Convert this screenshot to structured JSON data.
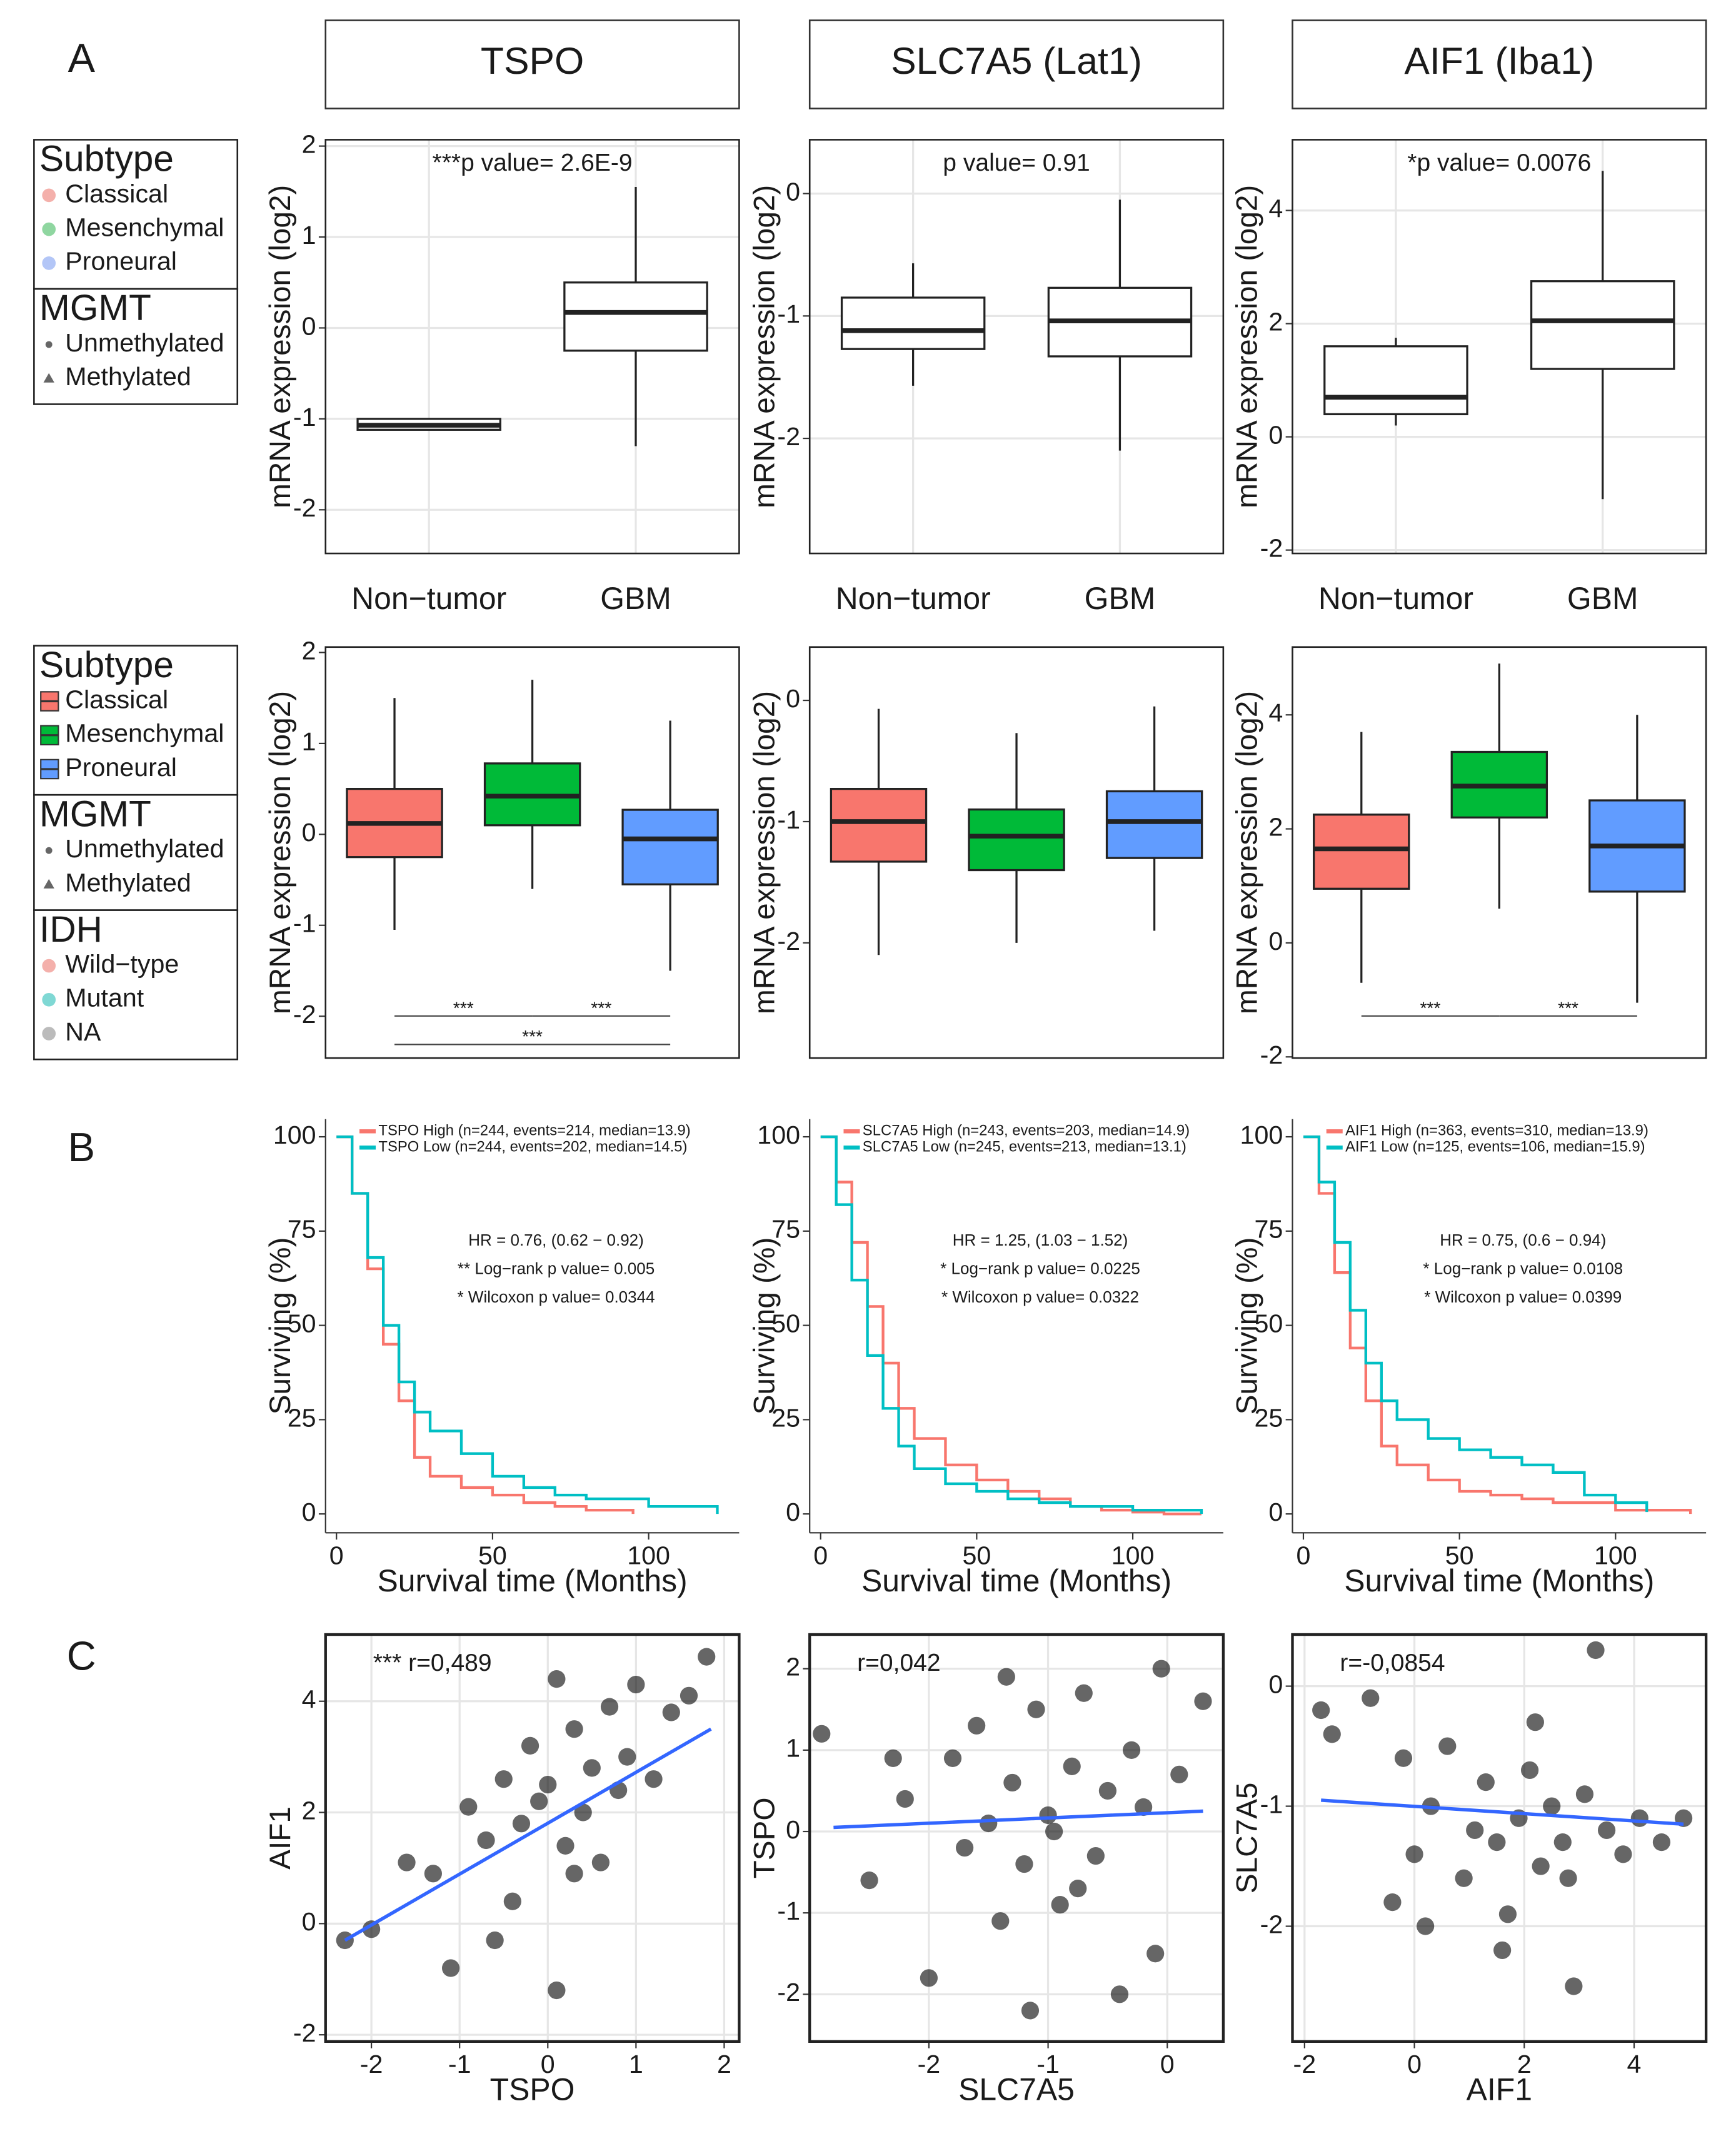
{
  "panels": [
    "A",
    "B",
    "C"
  ],
  "headers": [
    "TSPO",
    "SLC7A5 (Lat1)",
    "AIF1 (Iba1)"
  ],
  "legends": [
    {
      "groups": [
        {
          "title": "Subtype",
          "marker": "circle",
          "items": [
            {
              "label": "Classical",
              "color": "#f4b0ab"
            },
            {
              "label": "Mesenchymal",
              "color": "#8fd6a0"
            },
            {
              "label": "Proneural",
              "color": "#b3c6f7"
            }
          ]
        },
        {
          "title": "MGMT",
          "items": [
            {
              "label": "Unmethylated",
              "color": "#666666",
              "marker": "circle"
            },
            {
              "label": "Methylated",
              "color": "#666666",
              "marker": "triangle"
            }
          ]
        }
      ]
    },
    {
      "groups": [
        {
          "title": "Subtype",
          "marker": "box",
          "items": [
            {
              "label": "Classical",
              "color": "#f8766d"
            },
            {
              "label": "Mesenchymal",
              "color": "#00ba38"
            },
            {
              "label": "Proneural",
              "color": "#619cff"
            }
          ]
        },
        {
          "title": "MGMT",
          "items": [
            {
              "label": "Unmethylated",
              "color": "#666666",
              "marker": "circle"
            },
            {
              "label": "Methylated",
              "color": "#666666",
              "marker": "triangle"
            }
          ]
        },
        {
          "title": "IDH",
          "marker": "circle",
          "items": [
            {
              "label": "Wild−type",
              "color": "#f4b0ab"
            },
            {
              "label": "Mutant",
              "color": "#7fd8d4"
            },
            {
              "label": "NA",
              "color": "#bbbbbb"
            }
          ]
        }
      ]
    }
  ],
  "chart_data": [
    {
      "type": "box",
      "grid": true,
      "ylabel": "mRNA expression (log2)",
      "annotation": "***p value= 2.6E-9",
      "categories": [
        "Non−tumor",
        "GBM"
      ],
      "ylim": [
        -2.48,
        2.07
      ],
      "yticks": [
        -2,
        -1,
        0,
        1,
        2
      ],
      "boxes": [
        {
          "color": "#ffffff",
          "whislo": -1.12,
          "q1": -1.12,
          "median": -1.07,
          "q3": -1.0,
          "whishi": -1.0
        },
        {
          "color": "#ffffff",
          "whislo": -1.3,
          "q1": -0.25,
          "median": 0.17,
          "q3": 0.5,
          "whishi": 1.55
        }
      ]
    },
    {
      "type": "box",
      "grid": true,
      "ylabel": "mRNA expression (log2)",
      "annotation": "p value= 0.91",
      "categories": [
        "Non−tumor",
        "GBM"
      ],
      "ylim": [
        -2.94,
        0.44
      ],
      "yticks": [
        -2,
        -1,
        0
      ],
      "boxes": [
        {
          "color": "#ffffff",
          "whislo": -1.57,
          "q1": -1.27,
          "median": -1.12,
          "q3": -0.85,
          "whishi": -0.57
        },
        {
          "color": "#ffffff",
          "whislo": -2.1,
          "q1": -1.33,
          "median": -1.04,
          "q3": -0.77,
          "whishi": -0.05
        }
      ]
    },
    {
      "type": "box",
      "grid": true,
      "ylabel": "mRNA expression (log2)",
      "annotation": "*p value= 0.0076",
      "categories": [
        "Non−tumor",
        "GBM"
      ],
      "ylim": [
        -2.06,
        5.25
      ],
      "yticks": [
        -2,
        0,
        2,
        4
      ],
      "boxes": [
        {
          "color": "#ffffff",
          "whislo": 0.2,
          "q1": 0.4,
          "median": 0.7,
          "q3": 1.6,
          "whishi": 1.75
        },
        {
          "color": "#ffffff",
          "whislo": -1.1,
          "q1": 1.2,
          "median": 2.05,
          "q3": 2.75,
          "whishi": 4.7
        }
      ]
    },
    {
      "type": "box",
      "grid": false,
      "ylabel": "mRNA expression (log2)",
      "brackets": [
        "***",
        "***",
        "***"
      ],
      "ylim": [
        -2.46,
        2.06
      ],
      "yticks": [
        -2,
        -1,
        0,
        1,
        2
      ],
      "boxes": [
        {
          "color": "#f8766d",
          "whislo": -1.05,
          "q1": -0.25,
          "median": 0.12,
          "q3": 0.5,
          "whishi": 1.5
        },
        {
          "color": "#00ba38",
          "whislo": -0.6,
          "q1": 0.1,
          "median": 0.42,
          "q3": 0.78,
          "whishi": 1.7
        },
        {
          "color": "#619cff",
          "whislo": -1.5,
          "q1": -0.55,
          "median": -0.05,
          "q3": 0.27,
          "whishi": 1.25
        }
      ]
    },
    {
      "type": "box",
      "grid": false,
      "ylabel": "mRNA expression (log2)",
      "ylim": [
        -2.95,
        0.44
      ],
      "yticks": [
        -2,
        -1,
        0
      ],
      "boxes": [
        {
          "color": "#f8766d",
          "whislo": -2.1,
          "q1": -1.33,
          "median": -1.0,
          "q3": -0.73,
          "whishi": -0.07
        },
        {
          "color": "#00ba38",
          "whislo": -2.0,
          "q1": -1.4,
          "median": -1.12,
          "q3": -0.9,
          "whishi": -0.27
        },
        {
          "color": "#619cff",
          "whislo": -1.9,
          "q1": -1.3,
          "median": -1.0,
          "q3": -0.75,
          "whishi": -0.05
        }
      ]
    },
    {
      "type": "box",
      "grid": false,
      "ylabel": "mRNA expression (log2)",
      "brackets": [
        "***",
        "***"
      ],
      "ylim": [
        -2.02,
        5.19
      ],
      "yticks": [
        -2,
        0,
        2,
        4
      ],
      "boxes": [
        {
          "color": "#f8766d",
          "whislo": -0.7,
          "q1": 0.95,
          "median": 1.65,
          "q3": 2.25,
          "whishi": 3.7
        },
        {
          "color": "#00ba38",
          "whislo": 0.6,
          "q1": 2.2,
          "median": 2.75,
          "q3": 3.35,
          "whishi": 4.9
        },
        {
          "color": "#619cff",
          "whislo": -1.05,
          "q1": 0.9,
          "median": 1.7,
          "q3": 2.5,
          "whishi": 4.0
        }
      ]
    },
    {
      "type": "km",
      "ylabel": "Surviving (%)",
      "xlabel": "Survival time (Months)",
      "xlim": [
        -3.5,
        129
      ],
      "xticks": [
        0,
        50,
        100
      ],
      "ylim": [
        -5,
        104.7
      ],
      "yticks": [
        0,
        25,
        50,
        75,
        100
      ],
      "stats": [
        "HR = 0.76, (0.62 − 0.92)",
        "** Log−rank p value= 0.005",
        "* Wilcoxon p value= 0.0344"
      ],
      "series": [
        {
          "name": "TSPO High (n=244, events=214, median=13.9)",
          "color": "#f8766d",
          "x": [
            0,
            5,
            10,
            15,
            20,
            25,
            30,
            40,
            50,
            60,
            70,
            80,
            95
          ],
          "values": [
            100,
            85,
            65,
            45,
            30,
            15,
            10,
            7,
            5,
            3,
            2,
            1,
            0
          ]
        },
        {
          "name": "TSPO Low (n=244, events=202, median=14.5)",
          "color": "#00bfc4",
          "x": [
            0,
            5,
            10,
            15,
            20,
            25,
            30,
            40,
            50,
            60,
            70,
            80,
            100,
            110,
            122
          ],
          "values": [
            100,
            85,
            68,
            50,
            35,
            27,
            22,
            16,
            10,
            7,
            5,
            4,
            2,
            2,
            0
          ]
        }
      ]
    },
    {
      "type": "km",
      "ylabel": "Surviving (%)",
      "xlabel": "Survival time (Months)",
      "xlim": [
        -3.5,
        129
      ],
      "xticks": [
        0,
        50,
        100
      ],
      "ylim": [
        -5,
        104.7
      ],
      "yticks": [
        0,
        25,
        50,
        75,
        100
      ],
      "stats": [
        "HR = 1.25, (1.03 − 1.52)",
        "* Log−rank p value= 0.0225",
        "* Wilcoxon p value= 0.0322"
      ],
      "series": [
        {
          "name": "SLC7A5 High (n=243, events=203, median=14.9)",
          "color": "#f8766d",
          "x": [
            0,
            5,
            10,
            15,
            20,
            25,
            30,
            40,
            50,
            60,
            70,
            80,
            90,
            100,
            110,
            122
          ],
          "values": [
            100,
            88,
            72,
            55,
            40,
            28,
            20,
            13,
            9,
            6,
            4,
            2,
            1,
            0.5,
            0,
            0
          ]
        },
        {
          "name": "SLC7A5 Low (n=245, events=213, median=13.1)",
          "color": "#00bfc4",
          "x": [
            0,
            5,
            10,
            15,
            20,
            25,
            30,
            40,
            50,
            60,
            70,
            80,
            100,
            122
          ],
          "values": [
            100,
            82,
            62,
            42,
            28,
            18,
            12,
            8,
            6,
            4,
            3,
            2,
            1,
            0
          ]
        }
      ]
    },
    {
      "type": "km",
      "ylabel": "Surviving (%)",
      "xlabel": "Survival time (Months)",
      "xlim": [
        -3.5,
        129
      ],
      "xticks": [
        0,
        50,
        100
      ],
      "ylim": [
        -5,
        104.7
      ],
      "yticks": [
        0,
        25,
        50,
        75,
        100
      ],
      "stats": [
        "HR = 0.75, (0.6 − 0.94)",
        "* Log−rank p value= 0.0108",
        "* Wilcoxon p value= 0.0399"
      ],
      "series": [
        {
          "name": "AIF1 High (n=363, events=310, median=13.9)",
          "color": "#f8766d",
          "x": [
            0,
            5,
            10,
            15,
            20,
            25,
            30,
            40,
            50,
            60,
            70,
            80,
            100,
            120,
            124
          ],
          "values": [
            100,
            85,
            64,
            44,
            30,
            18,
            13,
            9,
            6,
            5,
            4,
            3,
            1,
            1,
            0
          ]
        },
        {
          "name": "AIF1 Low (n=125, events=106, median=15.9)",
          "color": "#00bfc4",
          "x": [
            0,
            5,
            10,
            15,
            20,
            25,
            30,
            40,
            50,
            60,
            70,
            80,
            90,
            100,
            110
          ],
          "values": [
            100,
            88,
            72,
            54,
            40,
            30,
            25,
            20,
            17,
            15,
            13,
            11,
            5,
            3,
            0.5
          ]
        }
      ]
    },
    {
      "type": "scatter",
      "grid": true,
      "xlabel": "TSPO",
      "ylabel": "AIF1",
      "annotation": "*** r=0,489",
      "xlim": [
        -2.52,
        2.17
      ],
      "xticks": [
        -2,
        -1,
        0,
        1,
        2
      ],
      "ylim": [
        -2.12,
        5.2
      ],
      "yticks": [
        -2,
        0,
        2,
        4
      ],
      "x": [
        -2.3,
        -2.0,
        -1.6,
        -1.3,
        -1.1,
        -0.9,
        -0.7,
        -0.5,
        -0.4,
        -0.3,
        -0.2,
        -0.1,
        0,
        0.1,
        0.2,
        0.3,
        0.4,
        0.5,
        0.6,
        0.7,
        0.8,
        0.9,
        1.0,
        1.2,
        1.4,
        1.6,
        1.8,
        -0.6,
        0.3,
        0.1
      ],
      "values": [
        -0.3,
        -0.1,
        1.1,
        0.9,
        -0.8,
        2.1,
        1.5,
        2.6,
        0.4,
        1.8,
        3.2,
        2.2,
        2.5,
        -1.2,
        1.4,
        3.5,
        2.0,
        2.8,
        1.1,
        3.9,
        2.4,
        3.0,
        4.3,
        2.6,
        3.8,
        4.1,
        4.8,
        -0.3,
        0.9,
        4.4
      ],
      "fit": {
        "color": "#3366ff",
        "x": [
          -2.3,
          1.85
        ],
        "values": [
          -0.3,
          3.5
        ]
      }
    },
    {
      "type": "scatter",
      "grid": true,
      "xlabel": "SLC7A5",
      "ylabel": "TSPO",
      "annotation": "r=0,042",
      "xlim": [
        -3.0,
        0.47
      ],
      "xticks": [
        -2,
        -1,
        0
      ],
      "ylim": [
        -2.58,
        2.42
      ],
      "yticks": [
        -2,
        -1,
        0,
        1,
        2
      ],
      "x": [
        -2.9,
        -2.5,
        -2.2,
        -2.0,
        -1.8,
        -1.7,
        -1.6,
        -1.5,
        -1.4,
        -1.3,
        -1.2,
        -1.1,
        -1.0,
        -0.9,
        -0.8,
        -0.7,
        -0.6,
        -0.5,
        -0.4,
        -0.3,
        -0.2,
        -0.1,
        0.1,
        0.3,
        -1.15,
        -0.95,
        -1.35,
        -0.75,
        -2.3,
        -0.05
      ],
      "values": [
        1.2,
        -0.6,
        0.4,
        -1.8,
        0.9,
        -0.2,
        1.3,
        0.1,
        -1.1,
        0.6,
        -0.4,
        1.5,
        0.2,
        -0.9,
        0.8,
        1.7,
        -0.3,
        0.5,
        -2.0,
        1.0,
        0.3,
        -1.5,
        0.7,
        1.6,
        -2.2,
        0.0,
        1.9,
        -0.7,
        0.9,
        2.0
      ],
      "fit": {
        "color": "#3366ff",
        "x": [
          -2.8,
          0.3
        ],
        "values": [
          0.05,
          0.25
        ]
      }
    },
    {
      "type": "scatter",
      "grid": true,
      "xlabel": "AIF1",
      "ylabel": "SLC7A5",
      "annotation": "r=-0,0854",
      "xlim": [
        -2.22,
        5.31
      ],
      "xticks": [
        -2,
        0,
        2,
        4
      ],
      "ylim": [
        -2.96,
        0.43
      ],
      "yticks": [
        -2,
        -1,
        0
      ],
      "x": [
        -1.7,
        -1.5,
        -0.8,
        -0.4,
        -0.2,
        0,
        0.3,
        0.6,
        0.9,
        1.1,
        1.3,
        1.5,
        1.7,
        1.9,
        2.1,
        2.3,
        2.5,
        2.7,
        2.9,
        3.1,
        3.3,
        3.5,
        3.8,
        4.1,
        4.5,
        4.9,
        1.6,
        2.2,
        0.2,
        2.8
      ],
      "values": [
        -0.2,
        -0.4,
        -0.1,
        -1.8,
        -0.6,
        -1.4,
        -1.0,
        -0.5,
        -1.6,
        -1.2,
        -0.8,
        -1.3,
        -1.9,
        -1.1,
        -0.7,
        -1.5,
        -1.0,
        -1.3,
        -2.5,
        -0.9,
        0.3,
        -1.2,
        -1.4,
        -1.1,
        -1.3,
        -1.1,
        -2.2,
        -0.3,
        -2.0,
        -1.6
      ],
      "fit": {
        "color": "#3366ff",
        "x": [
          -1.7,
          4.9
        ],
        "values": [
          -0.95,
          -1.15
        ]
      }
    }
  ]
}
